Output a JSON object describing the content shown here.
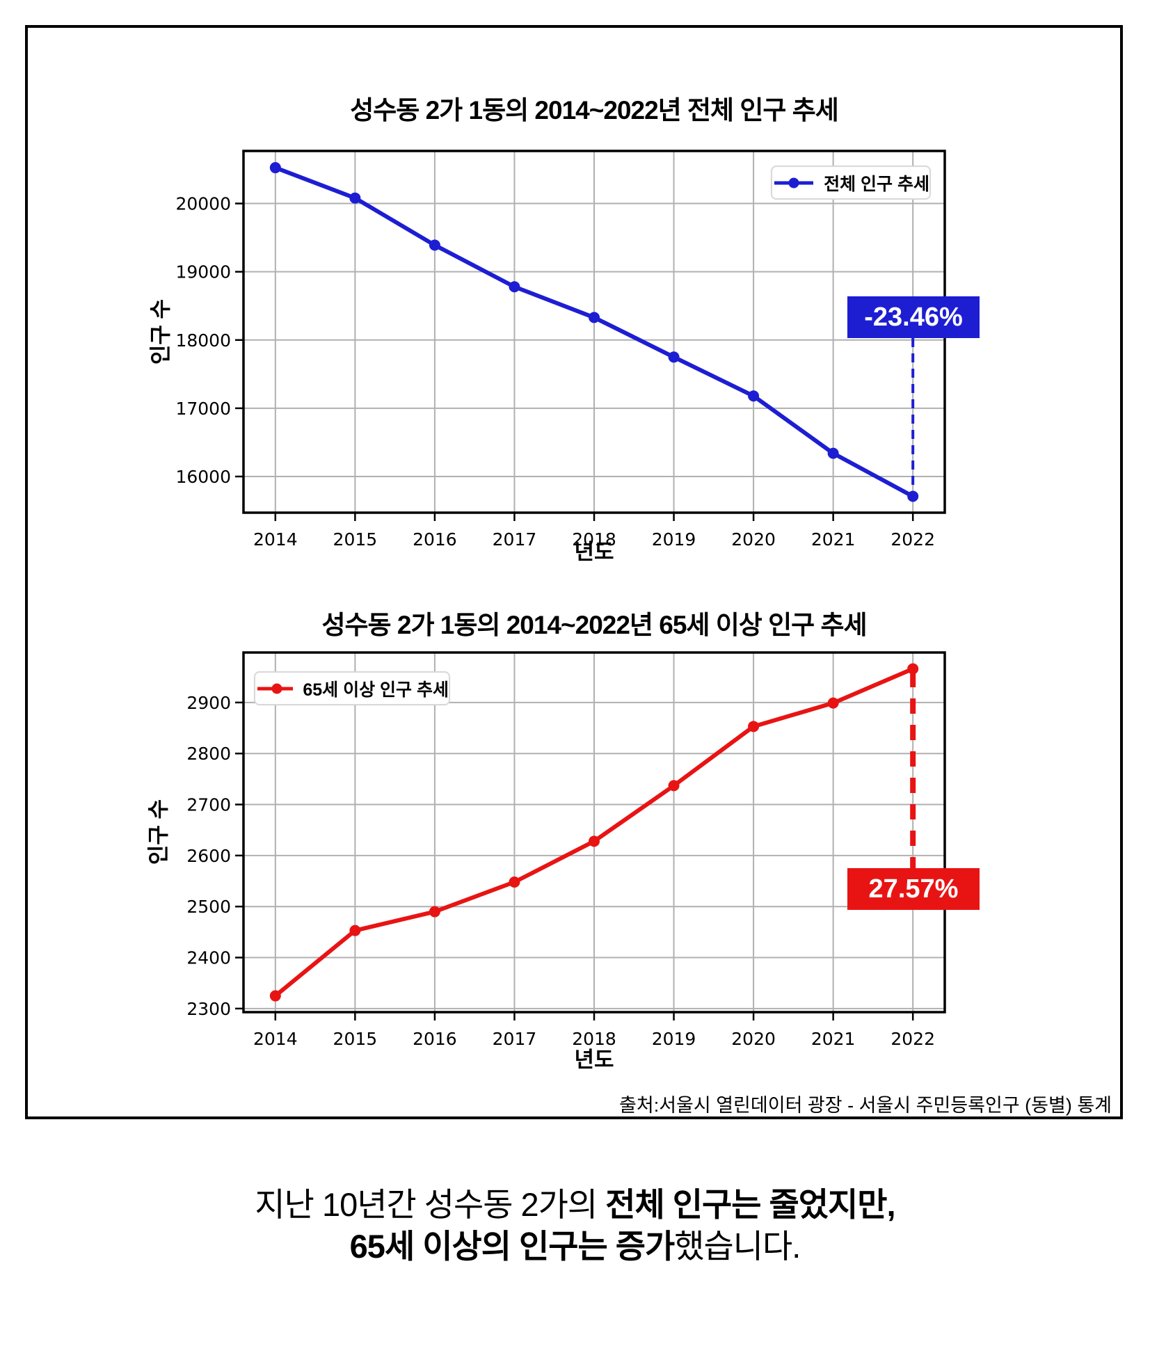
{
  "frame": {
    "border_color": "#000000"
  },
  "charts": {
    "first": {
      "title": "성수동 2가 1동의 2014~2022년 전체 인구 추세",
      "legend": "전체 인구 추세",
      "xlabel": "년도",
      "ylabel": "인구 수",
      "annotation": "-23.46%"
    },
    "second": {
      "title": "성수동 2가 1동의 2014~2022년 65세 이상 인구 추세",
      "legend": "65세 이상 인구 추세",
      "xlabel": "년도",
      "ylabel": "인구 수",
      "annotation": "27.57%"
    }
  },
  "chart_data": [
    {
      "type": "line",
      "title": "성수동 2가 1동의 2014~2022년 전체 인구 추세",
      "xlabel": "년도",
      "ylabel": "인구 수",
      "legend": "전체 인구 추세",
      "legend_position": "upper right",
      "annotation": "-23.46%",
      "color": "#1d1ed2",
      "grid": true,
      "x": [
        2014,
        2015,
        2016,
        2017,
        2018,
        2019,
        2020,
        2021,
        2022
      ],
      "values": [
        20525,
        20080,
        19390,
        18780,
        18330,
        17750,
        17180,
        16340,
        15710
      ],
      "yticks": [
        16000,
        17000,
        18000,
        19000,
        20000
      ],
      "ylim": [
        15470,
        20770
      ]
    },
    {
      "type": "line",
      "title": "성수동 2가 1동의 2014~2022년 65세 이상 인구 추세",
      "xlabel": "년도",
      "ylabel": "인구 수",
      "legend": "65세 이상 인구 추세",
      "legend_position": "upper left",
      "annotation": "27.57%",
      "color": "#e81414",
      "grid": true,
      "x": [
        2014,
        2015,
        2016,
        2017,
        2018,
        2019,
        2020,
        2021,
        2022
      ],
      "values": [
        2325,
        2453,
        2490,
        2548,
        2628,
        2737,
        2853,
        2899,
        2966
      ],
      "yticks": [
        2300,
        2400,
        2500,
        2600,
        2700,
        2800,
        2900
      ],
      "ylim": [
        2293,
        2998
      ]
    }
  ],
  "source": "출처:서울시 열린데이터 광장 - 서울시 주민등록인구 (동별) 통계",
  "caption": {
    "line1_regular": "지난 10년간 성수동 2가의 ",
    "line1_bold": "전체 인구는 줄었지만,",
    "line2_bold": "65세 이상의 인구는 증가",
    "line2_regular": "했습니다."
  }
}
